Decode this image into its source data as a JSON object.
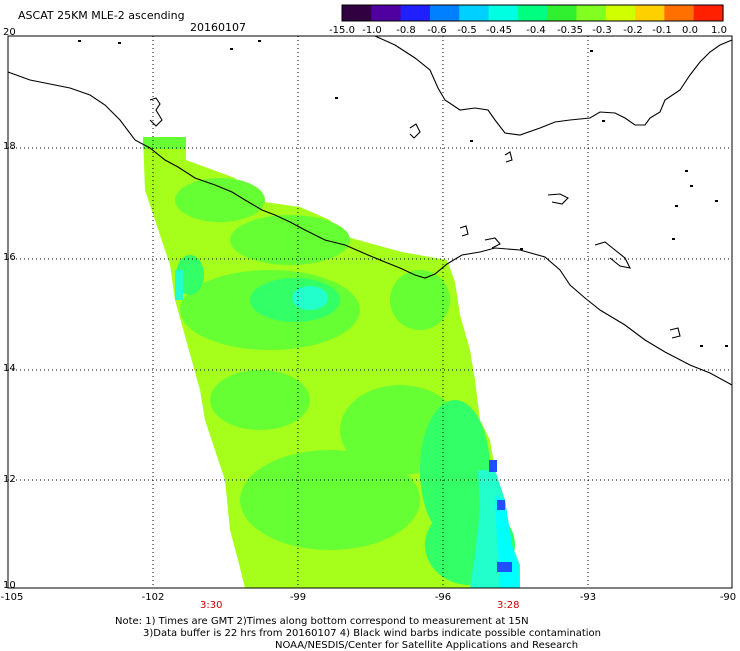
{
  "header": {
    "product": "ASCAT 25KM MLE-2 ascending",
    "date": "20160107"
  },
  "colorbar": {
    "labels": [
      "-15.0",
      "-1.0",
      "-0.8",
      "-0.6",
      "-0.5",
      "-0.45",
      "-0.4",
      "-0.35",
      "-0.3",
      "-0.2",
      "-0.1",
      "0.0",
      "1.0"
    ],
    "colors": [
      "#300040",
      "#5000a0",
      "#2020ff",
      "#0080ff",
      "#00d0ff",
      "#00ffe0",
      "#00ff80",
      "#30f030",
      "#80ff20",
      "#d0ff00",
      "#ffd000",
      "#ff7000",
      "#ff2000"
    ]
  },
  "axes": {
    "lat_labels": [
      "20",
      "18",
      "16",
      "14",
      "12",
      "10"
    ],
    "lon_labels": [
      "-105",
      "-102",
      "-99",
      "-96",
      "-93",
      "-90"
    ]
  },
  "times": {
    "left": "3:30",
    "right": "3:28"
  },
  "notes": {
    "line1": "Note: 1) Times are GMT 2)Times along bottom correspond to measurement at 15N",
    "line2": "3)Data buffer is 22 hrs from 20160107 4) Black wind barbs indicate possible contamination",
    "line3": "NOAA/NESDIS/Center for Satellite Applications and Research"
  },
  "swath_colors": {
    "base": "#a6ff1a",
    "mid": "#66ff33",
    "deep": "#33ff66",
    "cyan": "#22ffcc",
    "aqua": "#00ffff",
    "blue": "#1e50ff"
  }
}
